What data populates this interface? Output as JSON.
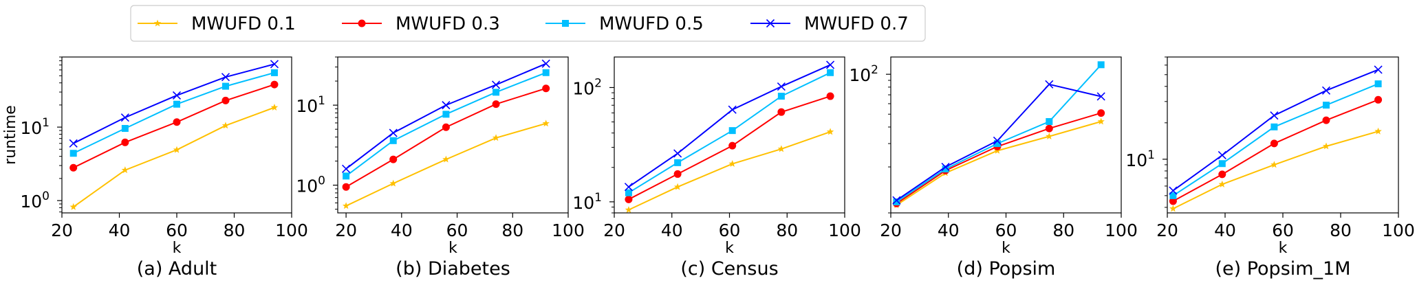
{
  "legend": {
    "entries": [
      {
        "name": "MWUFD 0.1",
        "color": "#FFC000",
        "marker": "star"
      },
      {
        "name": "MWUFD 0.3",
        "color": "#FF0000",
        "marker": "circle"
      },
      {
        "name": "MWUFD 0.5",
        "color": "#00BFFF",
        "marker": "square"
      },
      {
        "name": "MWUFD 0.7",
        "color": "#0000FF",
        "marker": "x"
      }
    ],
    "placement": "top-left"
  },
  "chart_data": [
    {
      "type": "line",
      "title": "(a) Adult",
      "xlabel": "k",
      "ylabel": "runtime",
      "xlim": [
        20,
        100
      ],
      "yscale": "log",
      "ylim": [
        0.68,
        90
      ],
      "xticks": [
        20,
        40,
        60,
        80,
        100
      ],
      "yticks": [
        {
          "v": 1,
          "t": "10",
          "e": "0"
        },
        {
          "v": 10,
          "t": "10",
          "e": "1"
        }
      ],
      "grid": false,
      "x": [
        24,
        42,
        60,
        77,
        94
      ],
      "series": [
        {
          "name": "MWUFD 0.1",
          "values": [
            0.82,
            2.6,
            4.9,
            10.5,
            18.5
          ]
        },
        {
          "name": "MWUFD 0.3",
          "values": [
            2.8,
            6.2,
            11.7,
            23,
            38
          ]
        },
        {
          "name": "MWUFD 0.5",
          "values": [
            4.4,
            9.6,
            20.5,
            36,
            55
          ]
        },
        {
          "name": "MWUFD 0.7",
          "values": [
            6.0,
            13.5,
            27,
            48,
            72
          ]
        }
      ]
    },
    {
      "type": "line",
      "title": "(b) Diabetes",
      "xlabel": "k",
      "ylabel": "",
      "xlim": [
        17,
        100
      ],
      "yscale": "log",
      "ylim": [
        0.45,
        40
      ],
      "xticks": [
        20,
        40,
        60,
        80,
        100
      ],
      "yticks": [
        {
          "v": 1,
          "t": "10",
          "e": "0"
        },
        {
          "v": 10,
          "t": "10",
          "e": "1"
        }
      ],
      "grid": false,
      "x": [
        20,
        37,
        56,
        74,
        92
      ],
      "series": [
        {
          "name": "MWUFD 0.1",
          "values": [
            0.55,
            1.05,
            2.1,
            3.9,
            5.9
          ]
        },
        {
          "name": "MWUFD 0.3",
          "values": [
            0.95,
            2.1,
            5.3,
            10.3,
            16.2
          ]
        },
        {
          "name": "MWUFD 0.5",
          "values": [
            1.3,
            3.6,
            7.7,
            14.5,
            25.5
          ]
        },
        {
          "name": "MWUFD 0.7",
          "values": [
            1.6,
            4.5,
            10,
            18,
            33
          ]
        }
      ]
    },
    {
      "type": "line",
      "title": "(c) Census",
      "xlabel": "k",
      "ylabel": "",
      "xlim": [
        20,
        100
      ],
      "yscale": "log",
      "ylim": [
        8,
        185
      ],
      "xticks": [
        20,
        40,
        60,
        80,
        100
      ],
      "yticks": [
        {
          "v": 10,
          "t": "10",
          "e": "1"
        },
        {
          "v": 100,
          "t": "10",
          "e": "2"
        }
      ],
      "grid": false,
      "x": [
        25,
        42,
        61,
        78,
        95
      ],
      "series": [
        {
          "name": "MWUFD 0.1",
          "values": [
            8.5,
            13.5,
            21.5,
            29,
            41
          ]
        },
        {
          "name": "MWUFD 0.3",
          "values": [
            10.5,
            17.5,
            31,
            61,
            84
          ]
        },
        {
          "name": "MWUFD 0.5",
          "values": [
            12,
            22,
            42,
            84,
            135
          ]
        },
        {
          "name": "MWUFD 0.7",
          "values": [
            13.5,
            26.5,
            64,
            102,
            158
          ]
        }
      ]
    },
    {
      "type": "line",
      "title": "(d) Popsim",
      "xlabel": "k",
      "ylabel": "",
      "xlim": [
        20,
        100
      ],
      "yscale": "log",
      "ylim": [
        9,
        135
      ],
      "xticks": [
        20,
        40,
        60,
        80,
        100
      ],
      "yticks": [
        {
          "v": 100,
          "t": "10",
          "e": "2"
        }
      ],
      "grid": false,
      "x": [
        22,
        39,
        57,
        75,
        93
      ],
      "series": [
        {
          "name": "MWUFD 0.1",
          "values": [
            10.3,
            18,
            26.5,
            34,
            44
          ]
        },
        {
          "name": "MWUFD 0.3",
          "values": [
            10.6,
            18.8,
            28.5,
            39,
            51
          ]
        },
        {
          "name": "MWUFD 0.5",
          "values": [
            10.9,
            19.3,
            30,
            44,
            118
          ]
        },
        {
          "name": "MWUFD 0.7",
          "values": [
            11.2,
            20,
            31.5,
            84,
            68
          ]
        }
      ]
    },
    {
      "type": "line",
      "title": "(e) Popsim_1M",
      "xlabel": "k",
      "ylabel": "",
      "xlim": [
        20,
        100
      ],
      "yscale": "log",
      "ylim": [
        3.6,
        70
      ],
      "xticks": [
        20,
        40,
        60,
        80,
        100
      ],
      "yticks": [
        {
          "v": 10,
          "t": "10",
          "e": "1"
        }
      ],
      "grid": false,
      "x": [
        22,
        39,
        57,
        75,
        93
      ],
      "series": [
        {
          "name": "MWUFD 0.1",
          "values": [
            3.9,
            6.2,
            9,
            12.8,
            17
          ]
        },
        {
          "name": "MWUFD 0.3",
          "values": [
            4.5,
            7.5,
            13.5,
            21,
            31
          ]
        },
        {
          "name": "MWUFD 0.5",
          "values": [
            5.0,
            9.2,
            18.5,
            28,
            42
          ]
        },
        {
          "name": "MWUFD 0.7",
          "values": [
            5.5,
            10.8,
            23,
            37,
            55
          ]
        }
      ]
    }
  ]
}
